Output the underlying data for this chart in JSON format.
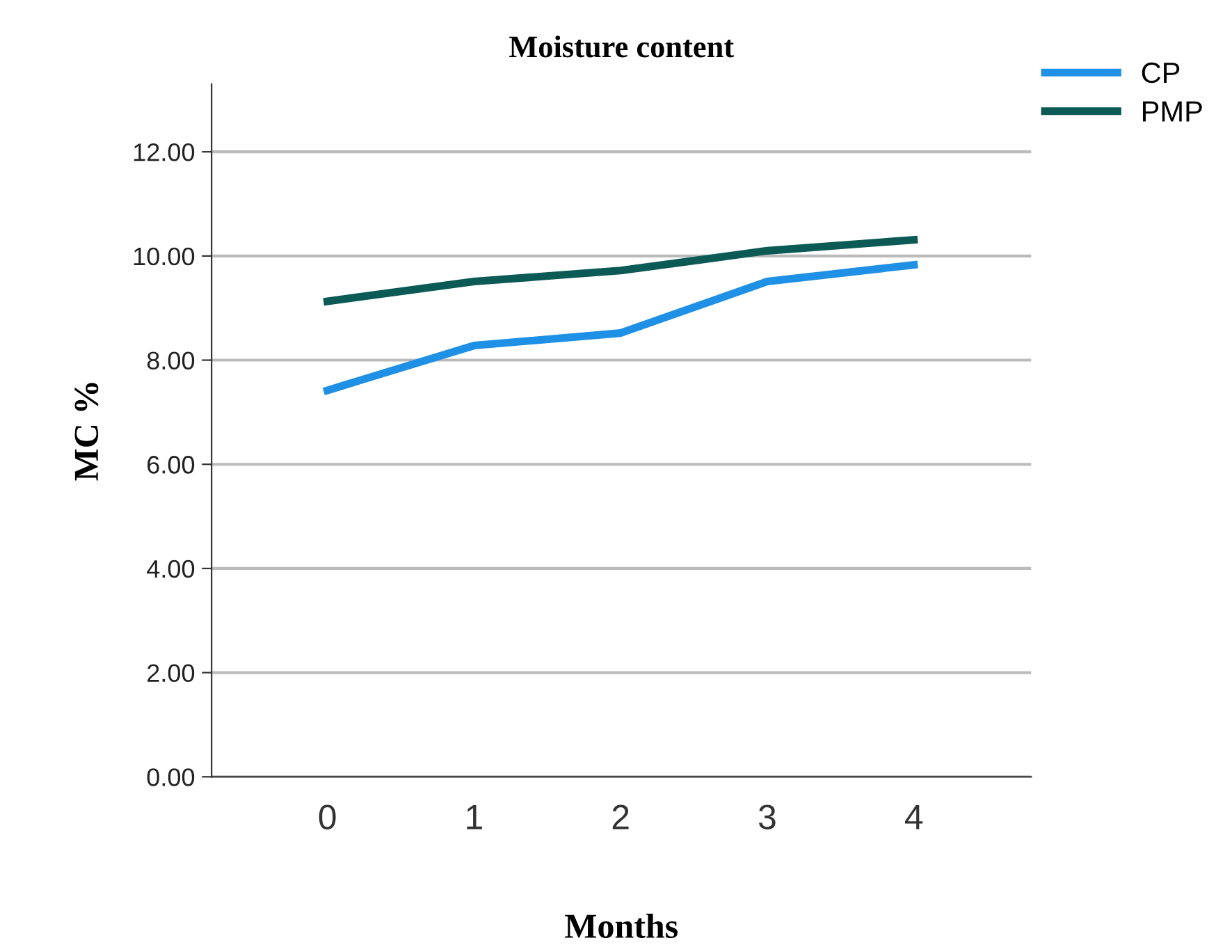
{
  "chart_data": {
    "type": "line",
    "title": "Moisture content",
    "xlabel": "Months",
    "ylabel": "MC %",
    "categories": [
      "0",
      "1",
      "2",
      "3",
      "4"
    ],
    "series": [
      {
        "name": "CP",
        "color": "#1e90e6",
        "values": [
          7.42,
          8.28,
          8.52,
          9.51,
          9.83
        ]
      },
      {
        "name": "PMP",
        "color": "#0b5a55",
        "values": [
          9.13,
          9.51,
          9.72,
          10.1,
          10.31
        ]
      }
    ],
    "ylim": [
      0,
      13.3
    ],
    "yticks": [
      {
        "value": 0,
        "label": "0.00"
      },
      {
        "value": 2,
        "label": "2.00"
      },
      {
        "value": 4,
        "label": "4.00"
      },
      {
        "value": 6,
        "label": "6.00"
      },
      {
        "value": 8,
        "label": "8.00"
      },
      {
        "value": 10,
        "label": "10.00"
      },
      {
        "value": 12,
        "label": "12.00"
      }
    ],
    "grid": "y",
    "legend": "top right",
    "marker": "none",
    "line_style": "solid"
  }
}
